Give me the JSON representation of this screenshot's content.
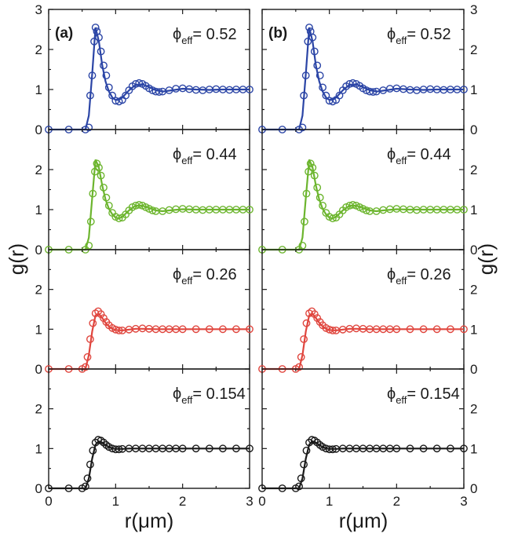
{
  "chart_data": {
    "type": "scatter",
    "x_label": "r(μm)",
    "y_label": "g(r)",
    "xlim": [
      0,
      3
    ],
    "ylim": [
      0,
      3
    ],
    "x_ticks": [
      "0",
      "1",
      "2",
      "3"
    ],
    "y_ticks": [
      "0",
      "1",
      "2",
      "3"
    ],
    "grid": false,
    "legend": "none",
    "columns": [
      {
        "label": "(a)"
      },
      {
        "label": "(b)"
      }
    ],
    "rows": [
      {
        "phi_label": "ϕ",
        "phi_sub": "eff",
        "phi_value": "= 0.52",
        "color": "#2b45a6",
        "series": [
          {
            "kind": "points",
            "x": [
              0.0,
              0.3,
              0.55,
              0.6,
              0.62,
              0.65,
              0.68,
              0.7,
              0.72,
              0.75,
              0.78,
              0.82,
              0.86,
              0.9,
              0.95,
              1.0,
              1.05,
              1.1,
              1.15,
              1.2,
              1.25,
              1.3,
              1.35,
              1.4,
              1.45,
              1.5,
              1.55,
              1.6,
              1.65,
              1.7,
              1.8,
              1.9,
              2.0,
              2.1,
              2.2,
              2.3,
              2.4,
              2.5,
              2.6,
              2.7,
              2.8,
              2.9,
              3.0
            ],
            "y": [
              0.0,
              0.0,
              0.0,
              0.05,
              0.85,
              1.35,
              2.2,
              2.55,
              2.45,
              2.3,
              1.95,
              1.6,
              1.35,
              1.05,
              0.85,
              0.72,
              0.7,
              0.74,
              0.85,
              0.98,
              1.08,
              1.14,
              1.16,
              1.14,
              1.09,
              1.03,
              0.98,
              0.95,
              0.94,
              0.95,
              0.98,
              1.02,
              1.03,
              1.01,
              0.99,
              0.98,
              1.0,
              1.01,
              1.0,
              0.99,
              1.0,
              1.0,
              1.0
            ]
          },
          {
            "kind": "line",
            "x": [
              0.0,
              0.55,
              0.6,
              0.65,
              0.7,
              0.75,
              0.8,
              0.85,
              0.9,
              0.95,
              1.0,
              1.05,
              1.1,
              1.2,
              1.3,
              1.4,
              1.5,
              1.6,
              1.7,
              1.8,
              2.0,
              2.2,
              2.4,
              2.6,
              2.8,
              3.0
            ],
            "y": [
              0.0,
              0.0,
              0.35,
              1.4,
              2.55,
              2.2,
              1.6,
              1.2,
              0.95,
              0.8,
              0.74,
              0.74,
              0.8,
              0.98,
              1.12,
              1.13,
              1.06,
              0.98,
              0.95,
              0.97,
              1.02,
              1.0,
              0.99,
              1.0,
              1.0,
              1.0
            ]
          }
        ]
      },
      {
        "phi_label": "ϕ",
        "phi_sub": "eff",
        "phi_value": "= 0.44",
        "color": "#6cb52e",
        "series": [
          {
            "kind": "points",
            "x": [
              0.0,
              0.3,
              0.55,
              0.6,
              0.63,
              0.66,
              0.69,
              0.72,
              0.75,
              0.78,
              0.82,
              0.86,
              0.9,
              0.95,
              1.0,
              1.05,
              1.1,
              1.15,
              1.2,
              1.25,
              1.3,
              1.35,
              1.4,
              1.45,
              1.5,
              1.55,
              1.6,
              1.7,
              1.8,
              1.9,
              2.0,
              2.1,
              2.2,
              2.3,
              2.4,
              2.5,
              2.6,
              2.7,
              2.8,
              2.9,
              3.0
            ],
            "y": [
              0.0,
              0.0,
              0.0,
              0.1,
              0.7,
              1.4,
              1.95,
              2.15,
              2.05,
              1.85,
              1.55,
              1.3,
              1.1,
              0.92,
              0.82,
              0.78,
              0.8,
              0.88,
              0.98,
              1.06,
              1.1,
              1.12,
              1.1,
              1.06,
              1.02,
              0.98,
              0.96,
              0.96,
              0.99,
              1.01,
              1.02,
              1.01,
              1.0,
              0.99,
              1.0,
              1.0,
              1.0,
              1.0,
              1.0,
              1.0,
              1.0
            ]
          },
          {
            "kind": "line",
            "x": [
              0.0,
              0.55,
              0.6,
              0.65,
              0.7,
              0.75,
              0.8,
              0.85,
              0.9,
              0.95,
              1.0,
              1.05,
              1.1,
              1.2,
              1.3,
              1.4,
              1.5,
              1.6,
              1.7,
              1.8,
              2.0,
              2.2,
              2.4,
              2.6,
              2.8,
              3.0
            ],
            "y": [
              0.0,
              0.0,
              0.3,
              1.3,
              2.25,
              2.05,
              1.6,
              1.25,
              1.02,
              0.88,
              0.8,
              0.78,
              0.82,
              0.98,
              1.1,
              1.1,
              1.04,
              0.98,
              0.96,
              0.98,
              1.01,
              1.0,
              1.0,
              1.0,
              1.0,
              1.0
            ]
          }
        ]
      },
      {
        "phi_label": "ϕ",
        "phi_sub": "eff",
        "phi_value": "= 0.26",
        "color": "#e0463e",
        "series": [
          {
            "kind": "points",
            "x": [
              0.0,
              0.3,
              0.5,
              0.55,
              0.58,
              0.62,
              0.66,
              0.7,
              0.74,
              0.78,
              0.82,
              0.86,
              0.9,
              0.95,
              1.0,
              1.05,
              1.1,
              1.2,
              1.3,
              1.4,
              1.5,
              1.6,
              1.7,
              1.8,
              1.9,
              2.0,
              2.2,
              2.4,
              2.6,
              2.8,
              3.0
            ],
            "y": [
              0.0,
              0.0,
              0.0,
              0.05,
              0.3,
              0.75,
              1.15,
              1.4,
              1.45,
              1.38,
              1.28,
              1.18,
              1.1,
              1.03,
              0.99,
              0.97,
              0.97,
              0.99,
              1.01,
              1.02,
              1.01,
              1.0,
              1.0,
              1.0,
              1.0,
              1.0,
              1.0,
              1.0,
              1.0,
              1.0,
              1.0
            ]
          },
          {
            "kind": "line",
            "x": [
              0.0,
              0.55,
              0.6,
              0.65,
              0.7,
              0.75,
              0.8,
              0.85,
              0.9,
              0.95,
              1.0,
              1.1,
              1.2,
              1.3,
              1.4,
              1.6,
              1.8,
              2.0,
              2.4,
              2.8,
              3.0
            ],
            "y": [
              0.0,
              0.0,
              0.35,
              0.95,
              1.35,
              1.38,
              1.28,
              1.16,
              1.07,
              1.01,
              0.98,
              0.97,
              0.99,
              1.01,
              1.01,
              1.0,
              1.0,
              1.0,
              1.0,
              1.0,
              1.0
            ]
          }
        ]
      },
      {
        "phi_label": "ϕ",
        "phi_sub": "eff",
        "phi_value": "= 0.154",
        "color": "#1a1a1a",
        "series": [
          {
            "kind": "points",
            "x": [
              0.0,
              0.3,
              0.5,
              0.55,
              0.58,
              0.62,
              0.66,
              0.7,
              0.74,
              0.78,
              0.82,
              0.86,
              0.9,
              0.95,
              1.0,
              1.05,
              1.1,
              1.2,
              1.3,
              1.4,
              1.5,
              1.6,
              1.7,
              1.8,
              1.9,
              2.0,
              2.2,
              2.4,
              2.6,
              2.8,
              3.0
            ],
            "y": [
              0.0,
              0.0,
              0.0,
              0.05,
              0.25,
              0.6,
              0.95,
              1.15,
              1.22,
              1.2,
              1.15,
              1.09,
              1.04,
              1.0,
              0.98,
              0.98,
              0.99,
              1.0,
              1.0,
              1.0,
              1.0,
              1.0,
              1.0,
              1.0,
              1.0,
              1.0,
              1.0,
              1.0,
              1.0,
              1.0,
              1.0
            ]
          },
          {
            "kind": "line",
            "x": [
              0.0,
              0.55,
              0.6,
              0.65,
              0.7,
              0.75,
              0.8,
              0.85,
              0.9,
              0.95,
              1.0,
              1.1,
              1.2,
              1.4,
              1.6,
              2.0,
              2.4,
              2.8,
              3.0
            ],
            "y": [
              0.0,
              0.0,
              0.25,
              0.75,
              1.1,
              1.18,
              1.15,
              1.09,
              1.04,
              1.0,
              0.99,
              0.99,
              1.0,
              1.0,
              1.0,
              1.0,
              1.0,
              1.0,
              1.0
            ]
          }
        ]
      }
    ]
  }
}
